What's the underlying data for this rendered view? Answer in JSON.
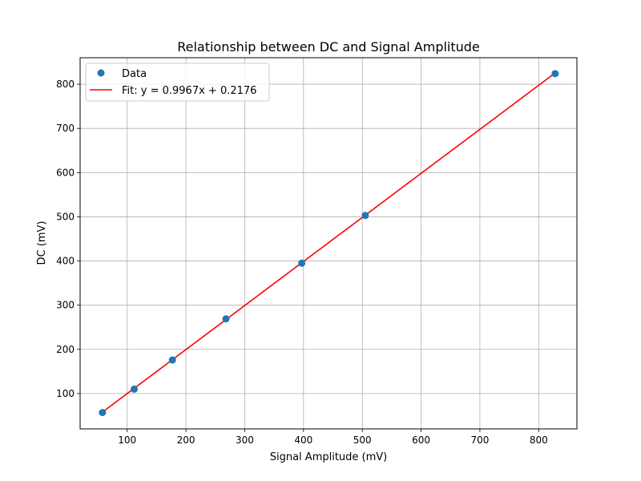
{
  "chart_data": {
    "type": "scatter",
    "title": "Relationship between DC and Signal Amplitude",
    "xlabel": "Signal Amplitude (mV)",
    "ylabel": "DC (mV)",
    "xlim": [
      20,
      865
    ],
    "ylim": [
      20,
      860
    ],
    "xticks": [
      100,
      200,
      300,
      400,
      500,
      600,
      700,
      800
    ],
    "yticks": [
      100,
      200,
      300,
      400,
      500,
      600,
      700,
      800
    ],
    "grid": true,
    "legend_position": "top-left",
    "series": [
      {
        "name": "Data",
        "kind": "scatter",
        "color": "#1f77b4",
        "x": [
          58,
          112,
          177,
          268,
          397,
          505,
          828
        ],
        "y": [
          57,
          110,
          176,
          269,
          395,
          503,
          824
        ]
      },
      {
        "name": "Fit: y = 0.9967x + 0.2176",
        "kind": "line",
        "color": "#ff0000",
        "slope": 0.9967,
        "intercept": 0.2176,
        "x_range": [
          58,
          828
        ]
      }
    ]
  }
}
